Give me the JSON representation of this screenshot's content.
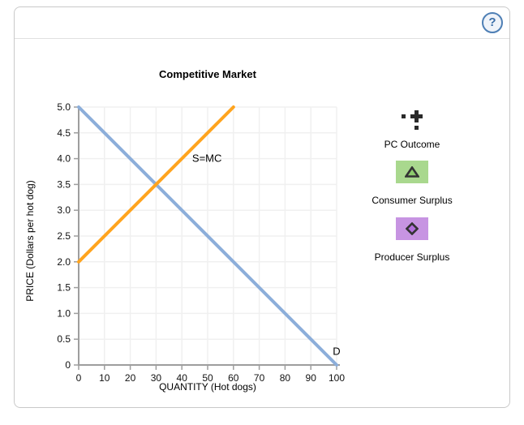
{
  "panel": {
    "help_label": "?"
  },
  "chart_data": {
    "type": "line",
    "title": "Competitive Market",
    "xlabel": "QUANTITY (Hot dogs)",
    "ylabel": "PRICE (Dollars per hot dog)",
    "xlim": [
      0,
      100
    ],
    "ylim": [
      0,
      5
    ],
    "x_ticks": [
      0,
      10,
      20,
      30,
      40,
      50,
      60,
      70,
      80,
      90,
      100
    ],
    "x_tick_labels": [
      "0",
      "10",
      "20",
      "30",
      "40",
      "50",
      "60",
      "70",
      "80",
      "90",
      "100"
    ],
    "y_ticks": [
      0,
      0.5,
      1,
      1.5,
      2,
      2.5,
      3,
      3.5,
      4,
      4.5,
      5
    ],
    "y_tick_labels": [
      "0",
      "0.5",
      "1.0",
      "1.5",
      "2.0",
      "2.5",
      "3.0",
      "3.5",
      "4.0",
      "4.5",
      "5.0"
    ],
    "grid": true,
    "grid_color": "#f0f0f0",
    "axis_color": "#9e9e9e",
    "series": [
      {
        "name": "Demand",
        "label": "D",
        "color": "#8caeda",
        "points": [
          [
            0,
            5
          ],
          [
            100,
            0
          ]
        ],
        "label_at": [
          100,
          0.26
        ],
        "label_anchor": "middle"
      },
      {
        "name": "Supply = Marginal Cost",
        "label": "S=MC",
        "color": "#ffa41e",
        "points": [
          [
            0,
            2
          ],
          [
            60,
            5
          ]
        ],
        "label_at": [
          44,
          4.0
        ],
        "label_anchor": "start"
      }
    ]
  },
  "tools": {
    "pc_outcome": {
      "label": "PC Outcome",
      "icon_color": "#2a2a2a"
    },
    "consumer_surplus": {
      "label": "Consumer Surplus",
      "swatch_color": "#a9d88e",
      "symbol_color": "#8ccb6c"
    },
    "producer_surplus": {
      "label": "Producer Surplus",
      "swatch_color": "#c794e2",
      "symbol_color": "#b16fdb"
    }
  }
}
